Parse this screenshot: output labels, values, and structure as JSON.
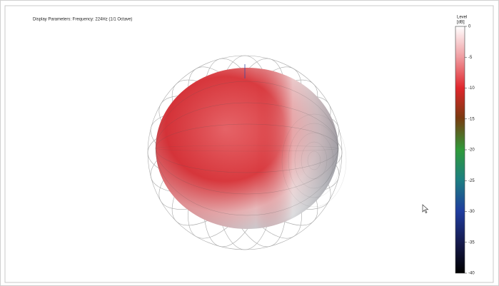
{
  "header": {
    "text": "Display Parameters:   Frequency: 224Hz (1/1 Octave)"
  },
  "colorbar": {
    "title": "Level",
    "unit": "[dB]",
    "range": [
      0,
      -40
    ],
    "ticks": [
      0,
      -5,
      -10,
      -15,
      -20,
      -25,
      -30,
      -35,
      -40
    ]
  }
}
